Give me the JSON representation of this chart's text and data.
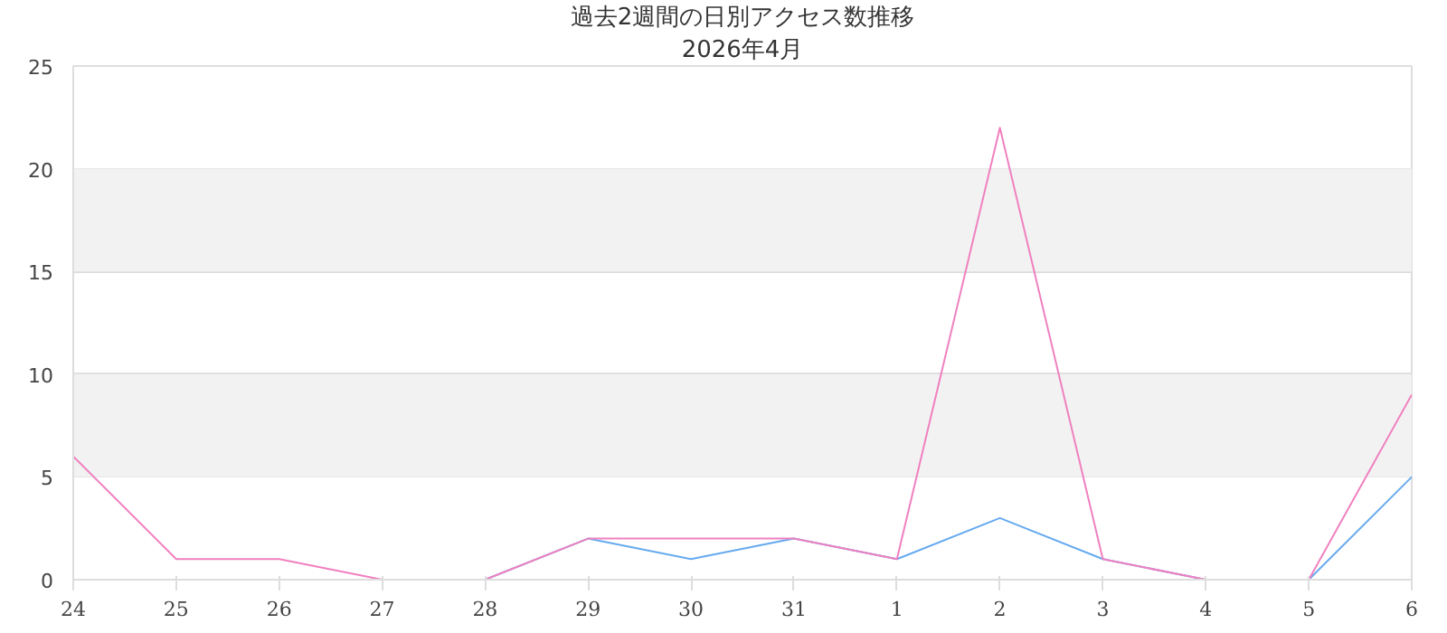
{
  "chart_data": {
    "type": "line",
    "title": "過去2週間の日別アクセス数推移",
    "subtitle": "2026年4月",
    "categories": [
      "24",
      "25",
      "26",
      "27",
      "28",
      "29",
      "30",
      "31",
      "1",
      "2",
      "3",
      "4",
      "5",
      "6"
    ],
    "series": [
      {
        "color": "#66aaf0",
        "values": [
          null,
          null,
          null,
          null,
          0,
          2,
          1,
          2,
          1,
          3,
          1,
          0,
          0,
          5
        ]
      },
      {
        "color": "#f080c0",
        "values": [
          6,
          1,
          1,
          0,
          0,
          2,
          2,
          2,
          1,
          22,
          1,
          0,
          0,
          9
        ]
      }
    ],
    "ylim": [
      0,
      25
    ],
    "yticks": [
      0,
      5,
      10,
      15,
      20,
      25
    ],
    "grid": "y",
    "marker": "none",
    "line_style": "solid",
    "bands": [
      {
        "axis": "y",
        "from": 5,
        "to": 10,
        "color": "#f2f2f2"
      },
      {
        "axis": "y",
        "from": 15,
        "to": 20,
        "color": "#f2f2f2"
      }
    ]
  }
}
